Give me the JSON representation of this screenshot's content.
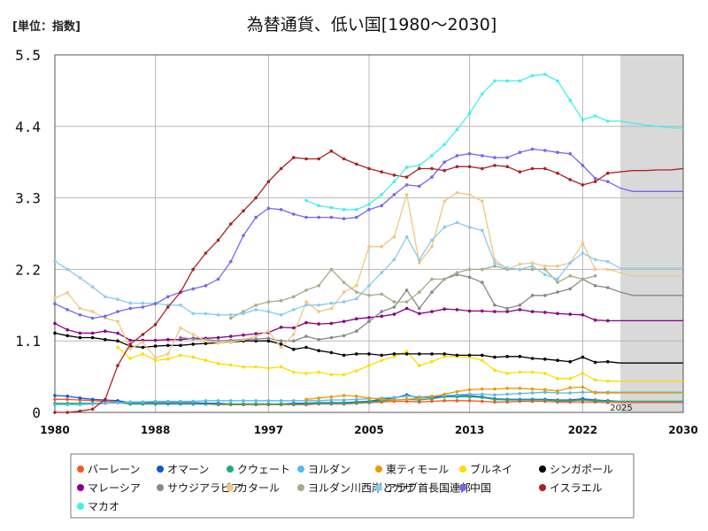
{
  "chart_data": {
    "type": "line",
    "unit_label": "[単位：指数]",
    "title": "為替通貨、低い国[1980～2030]",
    "ylim": [
      0,
      5.5
    ],
    "y_ticks": [
      "0",
      "1.1",
      "2.2",
      "3.3",
      "4.4",
      "5.5"
    ],
    "xlim": [
      1980,
      2030
    ],
    "x_ticks": [
      "1980",
      "1988",
      "1997",
      "2005",
      "2013",
      "2022",
      "2030"
    ],
    "projection_start": 2025,
    "projection_label": "2025",
    "grid": true,
    "legend_position": "bottom",
    "x": [
      1980,
      1981,
      1982,
      1983,
      1984,
      1985,
      1986,
      1987,
      1988,
      1989,
      1990,
      1991,
      1992,
      1993,
      1994,
      1995,
      1996,
      1997,
      1998,
      1999,
      2000,
      2001,
      2002,
      2003,
      2004,
      2005,
      2006,
      2007,
      2008,
      2009,
      2010,
      2011,
      2012,
      2013,
      2014,
      2015,
      2016,
      2017,
      2018,
      2019,
      2020,
      2021,
      2022,
      2023,
      2024,
      2025,
      2026,
      2027,
      2028,
      2029,
      2030
    ],
    "series": [
      {
        "name": "バーレーン",
        "color": "#ff5522",
        "values": [
          0.2,
          0.2,
          0.19,
          0.18,
          0.17,
          0.16,
          0.13,
          0.13,
          0.13,
          0.13,
          0.13,
          0.13,
          0.13,
          0.12,
          0.12,
          0.12,
          0.12,
          0.12,
          0.12,
          0.12,
          0.12,
          0.13,
          0.13,
          0.13,
          0.14,
          0.15,
          0.16,
          0.17,
          0.17,
          0.16,
          0.17,
          0.18,
          0.18,
          0.18,
          0.17,
          0.16,
          0.16,
          0.17,
          0.17,
          0.17,
          0.16,
          0.16,
          0.16,
          0.16,
          0.15,
          0.15,
          0.15,
          0.15,
          0.15,
          0.15,
          0.15
        ]
      },
      {
        "name": "オマーン",
        "color": "#1155dd",
        "values": [
          0.26,
          0.25,
          0.22,
          0.2,
          0.19,
          0.18,
          0.15,
          0.15,
          0.15,
          0.15,
          0.15,
          0.15,
          0.14,
          0.14,
          0.13,
          0.13,
          0.13,
          0.13,
          0.13,
          0.14,
          0.14,
          0.15,
          0.15,
          0.15,
          0.16,
          0.17,
          0.2,
          0.22,
          0.27,
          0.22,
          0.23,
          0.25,
          0.26,
          0.26,
          0.24,
          0.21,
          0.2,
          0.2,
          0.2,
          0.2,
          0.19,
          0.19,
          0.21,
          0.19,
          0.18,
          0.17,
          0.17,
          0.17,
          0.17,
          0.17,
          0.17
        ]
      },
      {
        "name": "クウェート",
        "color": "#22aa77",
        "values": [
          0.14,
          0.14,
          0.14,
          0.14,
          0.14,
          0.15,
          0.13,
          0.13,
          0.13,
          0.13,
          0.13,
          0.13,
          0.13,
          0.13,
          0.13,
          0.13,
          0.13,
          0.13,
          0.13,
          0.13,
          0.13,
          0.14,
          0.14,
          0.14,
          0.15,
          0.16,
          0.18,
          0.19,
          0.2,
          0.19,
          0.21,
          0.24,
          0.24,
          0.24,
          0.23,
          0.2,
          0.19,
          0.19,
          0.19,
          0.19,
          0.18,
          0.18,
          0.19,
          0.18,
          0.17,
          0.17,
          0.17,
          0.17,
          0.17,
          0.17,
          0.17
        ]
      },
      {
        "name": "ヨルダン",
        "color": "#55bbee",
        "values": [
          0.12,
          0.12,
          0.12,
          0.13,
          0.14,
          0.15,
          0.16,
          0.16,
          0.17,
          0.17,
          0.17,
          0.17,
          0.18,
          0.18,
          0.18,
          0.18,
          0.18,
          0.18,
          0.18,
          0.18,
          0.18,
          0.18,
          0.19,
          0.19,
          0.2,
          0.21,
          0.22,
          0.23,
          0.25,
          0.24,
          0.25,
          0.26,
          0.27,
          0.28,
          0.28,
          0.27,
          0.28,
          0.29,
          0.3,
          0.31,
          0.3,
          0.3,
          0.31,
          0.31,
          0.31,
          0.31,
          0.31,
          0.31,
          0.31,
          0.31,
          0.31
        ]
      },
      {
        "name": "東ティモール",
        "color": "#ee9900",
        "values": [
          null,
          null,
          null,
          null,
          null,
          null,
          null,
          null,
          null,
          null,
          null,
          null,
          null,
          null,
          null,
          null,
          null,
          null,
          null,
          null,
          0.2,
          0.22,
          0.24,
          0.26,
          0.25,
          0.22,
          0.2,
          0.19,
          0.2,
          0.22,
          0.24,
          0.28,
          0.32,
          0.35,
          0.36,
          0.36,
          0.37,
          0.37,
          0.36,
          0.35,
          0.33,
          0.38,
          0.39,
          0.3,
          0.3,
          0.3,
          0.3,
          0.3,
          0.3,
          0.3,
          0.3
        ]
      },
      {
        "name": "ブルネイ",
        "color": "#ffdd00",
        "values": [
          null,
          null,
          null,
          null,
          null,
          1.0,
          0.83,
          0.9,
          0.8,
          0.82,
          0.88,
          0.85,
          0.8,
          0.75,
          0.73,
          0.7,
          0.7,
          0.68,
          0.7,
          0.62,
          0.6,
          0.62,
          0.58,
          0.58,
          0.64,
          0.72,
          0.8,
          0.86,
          0.94,
          0.72,
          0.78,
          0.86,
          0.86,
          0.85,
          0.8,
          0.65,
          0.6,
          0.62,
          0.62,
          0.6,
          0.52,
          0.52,
          0.6,
          0.5,
          0.48,
          0.48,
          0.48,
          0.48,
          0.48,
          0.48,
          0.48
        ]
      },
      {
        "name": "シンガポール",
        "color": "#000000",
        "values": [
          1.22,
          1.18,
          1.15,
          1.15,
          1.12,
          1.1,
          1.02,
          1.0,
          1.02,
          1.03,
          1.03,
          1.05,
          1.06,
          1.07,
          1.08,
          1.1,
          1.1,
          1.1,
          1.05,
          0.97,
          1.0,
          0.95,
          0.92,
          0.88,
          0.9,
          0.9,
          0.88,
          0.9,
          0.9,
          0.9,
          0.9,
          0.9,
          0.88,
          0.88,
          0.88,
          0.85,
          0.86,
          0.86,
          0.83,
          0.82,
          0.8,
          0.78,
          0.85,
          0.77,
          0.78,
          0.76,
          0.76,
          0.76,
          0.76,
          0.76,
          0.76
        ]
      },
      {
        "name": "マレーシア",
        "color": "#880088",
        "values": [
          1.37,
          1.27,
          1.22,
          1.22,
          1.25,
          1.22,
          1.11,
          1.11,
          1.11,
          1.12,
          1.12,
          1.14,
          1.14,
          1.15,
          1.17,
          1.19,
          1.21,
          1.23,
          1.31,
          1.3,
          1.38,
          1.36,
          1.37,
          1.4,
          1.44,
          1.46,
          1.48,
          1.51,
          1.6,
          1.52,
          1.55,
          1.59,
          1.58,
          1.56,
          1.56,
          1.55,
          1.55,
          1.58,
          1.55,
          1.54,
          1.52,
          1.51,
          1.5,
          1.42,
          1.41,
          1.41,
          1.41,
          1.41,
          1.41,
          1.41,
          1.41
        ]
      },
      {
        "name": "サウジアラビア",
        "color": "#888888",
        "values": [
          null,
          null,
          null,
          null,
          null,
          null,
          null,
          null,
          null,
          null,
          1.15,
          1.13,
          1.12,
          1.1,
          1.11,
          1.12,
          1.13,
          1.14,
          1.1,
          1.1,
          1.17,
          1.12,
          1.15,
          1.18,
          1.25,
          1.4,
          1.55,
          1.62,
          1.88,
          1.6,
          1.85,
          2.05,
          2.12,
          2.08,
          2.0,
          1.65,
          1.6,
          1.65,
          1.8,
          1.8,
          1.85,
          1.9,
          2.05,
          1.95,
          1.92,
          1.85,
          1.8,
          1.8,
          1.8,
          1.8,
          1.8
        ]
      },
      {
        "name": "カタール",
        "color": "#f0c880",
        "values": [
          1.76,
          1.84,
          1.6,
          1.55,
          1.45,
          1.4,
          0.98,
          1.08,
          0.84,
          0.9,
          1.3,
          1.2,
          1.1,
          1.07,
          1.08,
          1.12,
          1.17,
          1.25,
          1.0,
          1.2,
          1.7,
          1.55,
          1.6,
          1.85,
          1.95,
          2.55,
          2.55,
          2.7,
          3.35,
          2.3,
          2.55,
          3.25,
          3.38,
          3.35,
          3.25,
          2.35,
          2.2,
          2.28,
          2.3,
          2.25,
          2.25,
          2.3,
          2.6,
          2.2,
          2.2,
          2.15,
          2.1,
          2.1,
          2.1,
          2.1,
          2.1
        ]
      },
      {
        "name": "ヨルダン川西岸とガザ",
        "color": "#aaaa88",
        "values": [
          null,
          null,
          null,
          null,
          null,
          null,
          null,
          null,
          null,
          null,
          null,
          null,
          null,
          null,
          1.45,
          1.55,
          1.65,
          1.7,
          1.72,
          1.78,
          1.88,
          1.95,
          2.2,
          2.0,
          1.85,
          1.8,
          1.82,
          1.7,
          1.7,
          1.85,
          2.05,
          2.05,
          2.15,
          2.2,
          2.2,
          2.25,
          2.2,
          2.2,
          2.2,
          2.2,
          2.0,
          2.1,
          2.05,
          2.1,
          null,
          null,
          null,
          null,
          null,
          null,
          null
        ]
      },
      {
        "name": "アラブ首長国連邦",
        "color": "#88ccee",
        "values": [
          2.33,
          2.2,
          2.07,
          1.93,
          1.78,
          1.74,
          1.68,
          1.68,
          1.68,
          1.65,
          1.65,
          1.52,
          1.52,
          1.5,
          1.5,
          1.52,
          1.58,
          1.55,
          1.5,
          1.58,
          1.65,
          1.65,
          1.68,
          1.7,
          1.75,
          1.95,
          2.15,
          2.35,
          2.7,
          2.35,
          2.65,
          2.85,
          2.92,
          2.85,
          2.8,
          2.3,
          2.22,
          2.2,
          2.25,
          2.12,
          2.05,
          2.3,
          2.45,
          2.35,
          2.32,
          2.22,
          2.22,
          2.22,
          2.22,
          2.22,
          2.22
        ]
      },
      {
        "name": "中国",
        "color": "#7766ee",
        "values": [
          1.67,
          1.58,
          1.5,
          1.45,
          1.48,
          1.55,
          1.6,
          1.62,
          1.67,
          1.78,
          1.85,
          1.9,
          1.95,
          2.05,
          2.32,
          2.72,
          3.0,
          3.14,
          3.12,
          3.05,
          3.0,
          3.0,
          3.0,
          2.98,
          3.0,
          3.12,
          3.18,
          3.35,
          3.5,
          3.48,
          3.62,
          3.85,
          3.95,
          3.98,
          3.95,
          3.92,
          3.92,
          4.0,
          4.05,
          4.03,
          4.0,
          3.98,
          3.8,
          3.6,
          3.55,
          3.45,
          3.4,
          3.4,
          3.4,
          3.4,
          3.4
        ]
      },
      {
        "name": "イスラエル",
        "color": "#aa2222",
        "values": [
          0.0,
          0.0,
          0.02,
          0.05,
          0.2,
          0.72,
          1.05,
          1.2,
          1.35,
          1.62,
          1.85,
          2.2,
          2.45,
          2.65,
          2.9,
          3.1,
          3.3,
          3.55,
          3.75,
          3.92,
          3.9,
          3.9,
          4.02,
          3.9,
          3.82,
          3.75,
          3.7,
          3.65,
          3.62,
          3.75,
          3.75,
          3.72,
          3.78,
          3.78,
          3.75,
          3.8,
          3.78,
          3.7,
          3.75,
          3.75,
          3.68,
          3.58,
          3.5,
          3.55,
          3.68,
          3.7,
          3.72,
          3.72,
          3.73,
          3.73,
          3.75
        ]
      },
      {
        "name": "マカオ",
        "color": "#44eeee",
        "values": [
          null,
          null,
          null,
          null,
          null,
          null,
          null,
          null,
          null,
          null,
          null,
          null,
          null,
          null,
          null,
          null,
          null,
          null,
          null,
          null,
          3.26,
          3.18,
          3.15,
          3.12,
          3.12,
          3.2,
          3.35,
          3.55,
          3.77,
          3.8,
          3.95,
          4.12,
          4.35,
          4.6,
          4.9,
          5.1,
          5.1,
          5.1,
          5.18,
          5.2,
          5.1,
          4.8,
          4.5,
          4.56,
          4.48,
          4.48,
          4.45,
          4.42,
          4.4,
          4.38,
          4.37
        ]
      }
    ]
  }
}
